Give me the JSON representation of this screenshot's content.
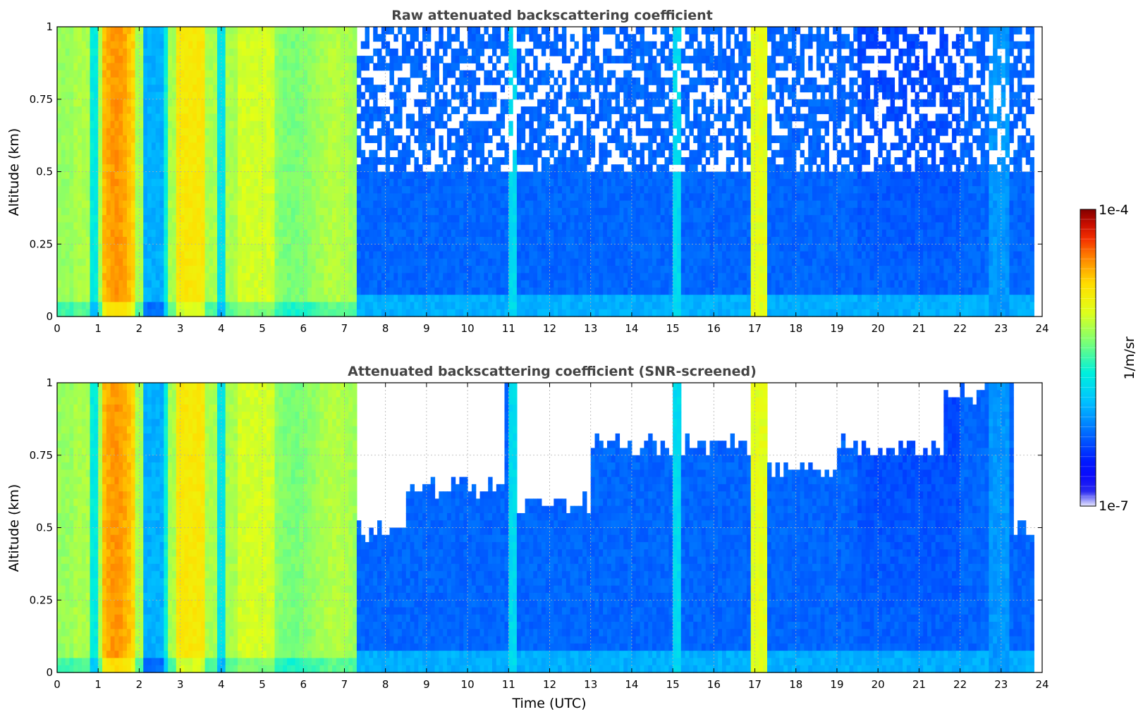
{
  "chart_data": [
    {
      "type": "heatmap",
      "title": "Raw attenuated backscattering coefficient",
      "xlabel": "",
      "ylabel": "Altitude (km)",
      "xlim": [
        0,
        24
      ],
      "ylim": [
        0,
        1
      ],
      "xticks": [
        "0",
        "1",
        "2",
        "3",
        "4",
        "5",
        "6",
        "7",
        "8",
        "9",
        "10",
        "11",
        "12",
        "13",
        "14",
        "15",
        "16",
        "17",
        "18",
        "19",
        "20",
        "21",
        "22",
        "23",
        "24"
      ],
      "yticks": [
        "0",
        "0.25",
        "0.5",
        "0.75",
        "1"
      ],
      "grid": true,
      "screened": false
    },
    {
      "type": "heatmap",
      "title": "Attenuated backscattering coefficient (SNR-screened)",
      "xlabel": "Time (UTC)",
      "ylabel": "Altitude (km)",
      "xlim": [
        0,
        24
      ],
      "ylim": [
        0,
        1
      ],
      "xticks": [
        "0",
        "1",
        "2",
        "3",
        "4",
        "5",
        "6",
        "7",
        "8",
        "9",
        "10",
        "11",
        "12",
        "13",
        "14",
        "15",
        "16",
        "17",
        "18",
        "19",
        "20",
        "21",
        "22",
        "23",
        "24"
      ],
      "yticks": [
        "0",
        "0.25",
        "0.5",
        "0.75",
        "1"
      ],
      "grid": true,
      "screened": true
    }
  ],
  "colorbar": {
    "label": "1/m/sr",
    "max_label": "1e-4",
    "min_label": "1e-7",
    "vmin": 1e-07,
    "vmax": 0.0001,
    "scale": "log",
    "colormap": "jet",
    "colors": [
      "#ececff",
      "#0000ff",
      "#0080ff",
      "#00e5ee",
      "#7fff7f",
      "#ffff00",
      "#ff8000",
      "#ff0000",
      "#800000"
    ]
  },
  "no_data_end_hour": 23.8
}
